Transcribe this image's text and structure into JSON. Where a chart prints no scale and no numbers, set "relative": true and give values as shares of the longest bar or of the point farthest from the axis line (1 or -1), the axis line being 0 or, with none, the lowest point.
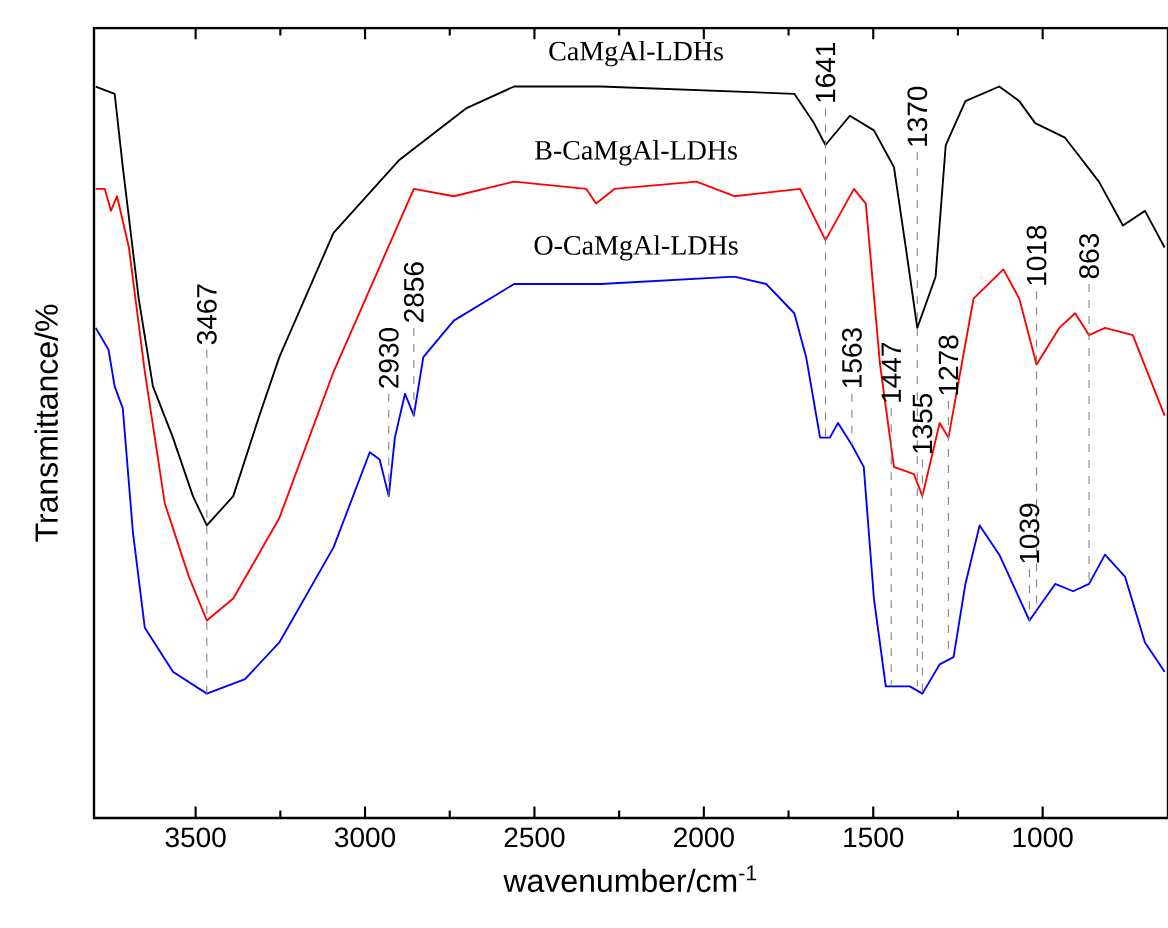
{
  "chart_data": {
    "type": "line",
    "relative": true,
    "xlabel": "wavenumber/cm$^{-1}$",
    "ylabel": "Transmittance/%",
    "xlim": [
      3800,
      630
    ],
    "xticks": [
      3500,
      3000,
      2500,
      2000,
      1500,
      1000
    ],
    "series": [
      {
        "name": "CaMgAl-LDHs",
        "color": "#000000",
        "x": [
          3795,
          3739,
          3715,
          3668,
          3626,
          3567,
          3508,
          3467,
          3389,
          3312,
          3253,
          3093,
          2898,
          2702,
          2560,
          2347,
          2304,
          1733,
          1675,
          1641,
          1569,
          1498,
          1439,
          1404,
          1370,
          1316,
          1286,
          1228,
          1128,
          1069,
          1022,
          934,
          834,
          763,
          698,
          640
        ],
        "values": [
          1.0,
          0.99,
          0.89,
          0.71,
          0.59,
          0.52,
          0.44,
          0.4,
          0.44,
          0.55,
          0.63,
          0.8,
          0.9,
          0.97,
          1.0,
          1.0,
          1.0,
          0.99,
          0.95,
          0.92,
          0.96,
          0.94,
          0.89,
          0.78,
          0.67,
          0.74,
          0.92,
          0.98,
          1.0,
          0.98,
          0.95,
          0.93,
          0.87,
          0.81,
          0.83,
          0.78
        ]
      },
      {
        "name": "B-CaMgAl-LDHs",
        "color": "#ff0000",
        "x": [
          3795,
          3768,
          3750,
          3732,
          3697,
          3650,
          3591,
          3520,
          3467,
          3389,
          3253,
          3093,
          2856,
          2738,
          2560,
          2347,
          2318,
          2264,
          2022,
          1910,
          1716,
          1641,
          1557,
          1522,
          1480,
          1439,
          1380,
          1355,
          1304,
          1278,
          1204,
          1116,
          1069,
          1018,
          951,
          904,
          863,
          816,
          734,
          640
        ],
        "values": [
          0.86,
          0.86,
          0.83,
          0.85,
          0.78,
          0.61,
          0.43,
          0.33,
          0.27,
          0.3,
          0.41,
          0.61,
          0.86,
          0.85,
          0.87,
          0.86,
          0.84,
          0.86,
          0.87,
          0.85,
          0.86,
          0.79,
          0.86,
          0.84,
          0.62,
          0.48,
          0.47,
          0.44,
          0.54,
          0.52,
          0.71,
          0.75,
          0.71,
          0.62,
          0.67,
          0.69,
          0.66,
          0.67,
          0.66,
          0.55
        ]
      },
      {
        "name": "O-CaMgAl-LDHs",
        "color": "#0000ff",
        "x": [
          3795,
          3757,
          3739,
          3715,
          3685,
          3650,
          3567,
          3467,
          3354,
          3253,
          3093,
          2986,
          2957,
          2930,
          2912,
          2882,
          2856,
          2828,
          2738,
          2560,
          2347,
          2304,
          1910,
          1816,
          1733,
          1698,
          1657,
          1628,
          1604,
          1563,
          1528,
          1498,
          1463,
          1392,
          1355,
          1304,
          1263,
          1228,
          1186,
          1128,
          1039,
          963,
          910,
          863,
          816,
          757,
          698,
          640
        ],
        "values": [
          0.67,
          0.64,
          0.59,
          0.56,
          0.39,
          0.26,
          0.2,
          0.17,
          0.19,
          0.24,
          0.37,
          0.5,
          0.49,
          0.44,
          0.52,
          0.58,
          0.55,
          0.63,
          0.68,
          0.73,
          0.73,
          0.73,
          0.74,
          0.73,
          0.69,
          0.63,
          0.52,
          0.52,
          0.54,
          0.51,
          0.48,
          0.3,
          0.18,
          0.18,
          0.17,
          0.21,
          0.22,
          0.32,
          0.4,
          0.36,
          0.27,
          0.32,
          0.31,
          0.32,
          0.36,
          0.33,
          0.24,
          0.2
        ]
      }
    ],
    "annotations": [
      {
        "text": "3467",
        "x": 3467,
        "y": 0.17
      },
      {
        "text": "2930",
        "x": 2930,
        "y": 0.44
      },
      {
        "text": "2856",
        "x": 2856,
        "y": 0.55
      },
      {
        "text": "1641",
        "x": 1641,
        "y": 0.52
      },
      {
        "text": "1370",
        "x": 1370,
        "y": 0.18
      },
      {
        "text": "1563",
        "x": 1563,
        "y": 0.51
      },
      {
        "text": "1447",
        "x": 1447,
        "y": 0.18
      },
      {
        "text": "1355",
        "x": 1355,
        "y": 0.17
      },
      {
        "text": "1278",
        "x": 1278,
        "y": 0.22
      },
      {
        "text": "1018",
        "x": 1018,
        "y": 0.28
      },
      {
        "text": "863",
        "x": 863,
        "y": 0.32
      },
      {
        "text": "1039",
        "x": 1039,
        "y": 0.27
      }
    ]
  }
}
